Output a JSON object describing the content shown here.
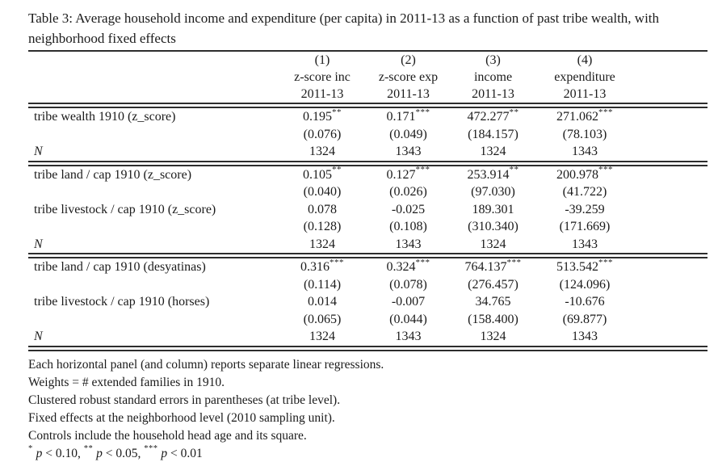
{
  "caption": "Table 3: Average household income and expenditure (per capita) in 2011-13 as a function of past tribe wealth, with neighborhood fixed effects",
  "table": {
    "column_numbers": [
      "(1)",
      "(2)",
      "(3)",
      "(4)"
    ],
    "column_names": [
      "z-score inc",
      "z-score exp",
      "income",
      "expenditure"
    ],
    "column_years": [
      "2011-13",
      "2011-13",
      "2011-13",
      "2011-13"
    ],
    "panels": [
      {
        "rows": [
          {
            "label": "tribe wealth 1910 (z_score)",
            "cells": [
              {
                "value": "0.195",
                "stars": "**"
              },
              {
                "value": "0.171",
                "stars": "***"
              },
              {
                "value": "472.277",
                "stars": "**"
              },
              {
                "value": "271.062",
                "stars": "***"
              }
            ]
          },
          {
            "label": "",
            "cells": [
              {
                "value": "(0.076)"
              },
              {
                "value": "(0.049)"
              },
              {
                "value": "(184.157)"
              },
              {
                "value": "(78.103)"
              }
            ]
          },
          {
            "label": "N",
            "label_italic": true,
            "cells": [
              {
                "value": "1324"
              },
              {
                "value": "1343"
              },
              {
                "value": "1324"
              },
              {
                "value": "1343"
              }
            ]
          }
        ]
      },
      {
        "rows": [
          {
            "label": "tribe land / cap 1910 (z_score)",
            "cells": [
              {
                "value": "0.105",
                "stars": "**"
              },
              {
                "value": "0.127",
                "stars": "***"
              },
              {
                "value": "253.914",
                "stars": "**"
              },
              {
                "value": "200.978",
                "stars": "***"
              }
            ]
          },
          {
            "label": "",
            "cells": [
              {
                "value": "(0.040)"
              },
              {
                "value": "(0.026)"
              },
              {
                "value": "(97.030)"
              },
              {
                "value": "(41.722)"
              }
            ]
          },
          {
            "label": "tribe livestock / cap 1910 (z_score)",
            "cells": [
              {
                "value": "0.078"
              },
              {
                "value": "-0.025"
              },
              {
                "value": "189.301"
              },
              {
                "value": "-39.259"
              }
            ]
          },
          {
            "label": "",
            "cells": [
              {
                "value": "(0.128)"
              },
              {
                "value": "(0.108)"
              },
              {
                "value": "(310.340)"
              },
              {
                "value": "(171.669)"
              }
            ]
          },
          {
            "label": "N",
            "label_italic": true,
            "cells": [
              {
                "value": "1324"
              },
              {
                "value": "1343"
              },
              {
                "value": "1324"
              },
              {
                "value": "1343"
              }
            ]
          }
        ]
      },
      {
        "rows": [
          {
            "label": "tribe land / cap 1910 (desyatinas)",
            "cells": [
              {
                "value": "0.316",
                "stars": "***"
              },
              {
                "value": "0.324",
                "stars": "***"
              },
              {
                "value": "764.137",
                "stars": "***"
              },
              {
                "value": "513.542",
                "stars": "***"
              }
            ]
          },
          {
            "label": "",
            "cells": [
              {
                "value": "(0.114)"
              },
              {
                "value": "(0.078)"
              },
              {
                "value": "(276.457)"
              },
              {
                "value": "(124.096)"
              }
            ]
          },
          {
            "label": "tribe livestock / cap 1910 (horses)",
            "cells": [
              {
                "value": "0.014"
              },
              {
                "value": "-0.007"
              },
              {
                "value": "34.765"
              },
              {
                "value": "-10.676"
              }
            ]
          },
          {
            "label": "",
            "cells": [
              {
                "value": "(0.065)"
              },
              {
                "value": "(0.044)"
              },
              {
                "value": "(158.400)"
              },
              {
                "value": "(69.877)"
              }
            ]
          },
          {
            "label": "N",
            "label_italic": true,
            "cells": [
              {
                "value": "1324"
              },
              {
                "value": "1343"
              },
              {
                "value": "1324"
              },
              {
                "value": "1343"
              }
            ]
          }
        ]
      }
    ],
    "notes": [
      {
        "segments": [
          {
            "text": "Each horizontal panel (and column) reports separate linear regressions."
          }
        ]
      },
      {
        "segments": [
          {
            "text": "Weights = # extended families in 1910."
          }
        ]
      },
      {
        "segments": [
          {
            "text": "Clustered robust standard errors in parentheses (at tribe level)."
          }
        ]
      },
      {
        "segments": [
          {
            "text": "Fixed effects at the neighborhood level (2010 sampling unit)."
          }
        ]
      },
      {
        "segments": [
          {
            "text": "Controls include the household head age and its square."
          }
        ]
      },
      {
        "segments": [
          {
            "text": "*",
            "sup": true
          },
          {
            "text": " "
          },
          {
            "text": "p",
            "italic": true
          },
          {
            "text": " < 0.10, "
          },
          {
            "text": "**",
            "sup": true
          },
          {
            "text": " "
          },
          {
            "text": "p",
            "italic": true
          },
          {
            "text": " < 0.05, "
          },
          {
            "text": "***",
            "sup": true
          },
          {
            "text": " "
          },
          {
            "text": "p",
            "italic": true
          },
          {
            "text": " < 0.01"
          }
        ]
      }
    ]
  },
  "colors": {
    "text": "#1b1b1b",
    "rule": "#2d2d2d",
    "background": "#ffffff"
  }
}
